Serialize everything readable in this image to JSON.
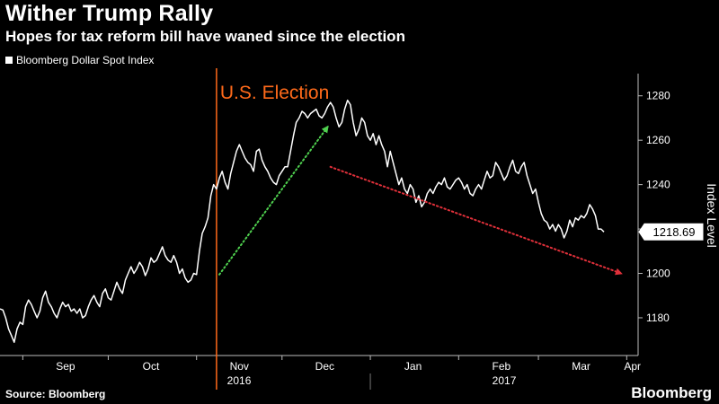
{
  "header": {
    "title": "Wither Trump Rally",
    "subtitle": "Hopes for tax reform bill have waned since the election"
  },
  "legend": {
    "label": "Bloomberg Dollar Spot Index"
  },
  "footer": {
    "source": "Source: Bloomberg",
    "brand": "Bloomberg"
  },
  "colors": {
    "background": "#000000",
    "series": "#ffffff",
    "election": "#ff6a1a",
    "up_arrow": "#4fd04f",
    "down_arrow": "#e0303a"
  },
  "chart_data": {
    "type": "line",
    "title": "Wither Trump Rally",
    "subtitle": "Hopes for tax reform bill have waned since the election",
    "ylabel": "Index Level",
    "ylim": [
      1163,
      1290
    ],
    "yticks": [
      1180,
      1200,
      1220,
      1240,
      1260,
      1280
    ],
    "xlim": [
      "2016-08-24",
      "2017-04-05"
    ],
    "month_ticks": [
      {
        "label": "Sep",
        "date": "2016-09-01"
      },
      {
        "label": "Oct",
        "date": "2016-10-01"
      },
      {
        "label": "Nov",
        "date": "2016-11-01"
      },
      {
        "label": "Dec",
        "date": "2016-12-01"
      },
      {
        "label": "Jan",
        "date": "2017-01-01"
      },
      {
        "label": "Feb",
        "date": "2017-02-01"
      },
      {
        "label": "Mar",
        "date": "2017-03-01"
      },
      {
        "label": "Apr",
        "date": "2017-04-01"
      }
    ],
    "year_labels": [
      {
        "label": "2016",
        "from": "2016-08-24",
        "to": "2017-01-01"
      },
      {
        "label": "2017",
        "from": "2017-01-01",
        "to": "2017-04-05"
      }
    ],
    "last_value": {
      "label": "1218.69",
      "value": 1218.69
    },
    "event": {
      "label": "U.S. Election",
      "date": "2016-11-08"
    },
    "annotations": [
      {
        "name": "rally-arrow",
        "from": {
          "date": "2016-11-09",
          "value": 1199.5
        },
        "to": {
          "date": "2016-12-17",
          "value": 1266
        }
      },
      {
        "name": "decline-arrow",
        "from": {
          "date": "2016-12-18",
          "value": 1248
        },
        "to": {
          "date": "2017-03-30",
          "value": 1200
        }
      }
    ],
    "series": [
      {
        "name": "Bloomberg Dollar Spot Index",
        "x_start": "2016-08-24",
        "step_days": 1,
        "values": [
          1184,
          1183.5,
          1180,
          1175,
          1172,
          1169,
          1175,
          1178,
          1177,
          1185,
          1188,
          1186,
          1183,
          1180,
          1183,
          1189,
          1192,
          1187,
          1185,
          1182,
          1180,
          1184,
          1187,
          1185,
          1186,
          1183,
          1184,
          1182,
          1184,
          1180,
          1181,
          1185,
          1188,
          1190,
          1187,
          1185,
          1191,
          1193,
          1189,
          1188,
          1192,
          1196,
          1193,
          1191,
          1197,
          1200,
          1203,
          1200,
          1202,
          1205,
          1203,
          1199,
          1202,
          1207,
          1205,
          1206,
          1209,
          1212,
          1208,
          1206,
          1205,
          1208,
          1205,
          1200,
          1202,
          1198,
          1196,
          1197,
          1200,
          1199.5,
          1210,
          1218,
          1221,
          1225,
          1235,
          1240,
          1238,
          1243,
          1246,
          1241,
          1238,
          1245,
          1250,
          1255,
          1258,
          1255,
          1252,
          1250,
          1249,
          1246,
          1255,
          1256,
          1251,
          1248,
          1246,
          1243,
          1241,
          1240,
          1244,
          1246,
          1248,
          1248,
          1255,
          1262,
          1268,
          1270,
          1273,
          1272,
          1270,
          1272,
          1273,
          1274,
          1271,
          1270,
          1272,
          1275,
          1277,
          1275,
          1270,
          1266,
          1268,
          1274,
          1278,
          1276,
          1268,
          1262,
          1265,
          1270,
          1268,
          1262,
          1260,
          1263,
          1258,
          1262,
          1258,
          1255,
          1248,
          1255,
          1250,
          1245,
          1240,
          1243,
          1238,
          1236,
          1240,
          1238,
          1232,
          1235,
          1230,
          1232,
          1236,
          1238,
          1236,
          1239,
          1241,
          1240,
          1243,
          1239,
          1238,
          1240,
          1242,
          1243,
          1241,
          1238,
          1240,
          1236,
          1235,
          1238,
          1240,
          1238,
          1242,
          1246,
          1243,
          1244,
          1250,
          1248,
          1245,
          1242,
          1244,
          1248,
          1251,
          1246,
          1245,
          1248,
          1250,
          1244,
          1240,
          1236,
          1238,
          1232,
          1227,
          1224,
          1223,
          1220,
          1222,
          1219,
          1222,
          1220,
          1216,
          1219,
          1224,
          1221,
          1225,
          1224,
          1226,
          1225,
          1227,
          1231,
          1229,
          1226,
          1220,
          1220,
          1218.69
        ]
      }
    ]
  }
}
